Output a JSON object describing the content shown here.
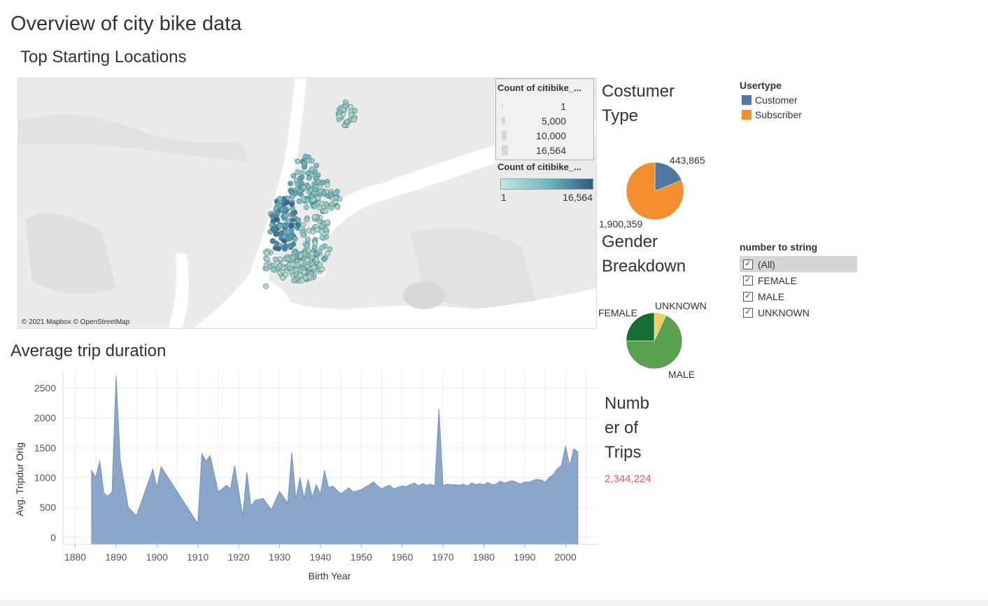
{
  "dashboard": {
    "title": "Overview of city bike data",
    "map_title": "Top Starting Locations",
    "avg_title": "Average trip duration",
    "costumer_line1": "Costumer",
    "costumer_line2": "Type",
    "gender_line1": "Gender",
    "gender_line2": "Breakdown",
    "trips_line1": "Numb",
    "trips_line2": "er of",
    "trips_line3": "Trips",
    "trips_value": "2,344,224",
    "map_attribution": "© 2021 Mapbox © OpenStreetMap"
  },
  "map_legend_size": {
    "title": "Count of citibike_...",
    "items": [
      "1",
      "5,000",
      "10,000",
      "16,564"
    ]
  },
  "map_legend_color": {
    "title": "Count of citibike_...",
    "min": "1",
    "max": "16,564",
    "color_low": "#c2e5dc",
    "color_high": "#2a5b84"
  },
  "usertype_legend": {
    "title": "Usertype",
    "items": [
      {
        "label": "Customer",
        "color": "#4e79a7"
      },
      {
        "label": "Subscriber",
        "color": "#f28e2b"
      }
    ]
  },
  "gender_filter": {
    "title": "number to string",
    "options": [
      {
        "label": "(All)",
        "checked": true,
        "highlighted": true
      },
      {
        "label": "FEMALE",
        "checked": true
      },
      {
        "label": "MALE",
        "checked": true
      },
      {
        "label": "UNKNOWN",
        "checked": true
      }
    ]
  },
  "chart_data": [
    {
      "type": "pie",
      "slices": [
        {
          "label": "Customer",
          "value": 443865,
          "value_label": "443,865",
          "color": "#4e79a7"
        },
        {
          "label": "Subscriber",
          "value": 1900359,
          "value_label": "1,900,359",
          "color": "#f28e2b"
        }
      ]
    },
    {
      "type": "pie",
      "slices": [
        {
          "label": "FEMALE",
          "value": 0.25,
          "color": "#166d33"
        },
        {
          "label": "MALE",
          "value": 0.68,
          "color": "#59a14f"
        },
        {
          "label": "UNKNOWN",
          "value": 0.07,
          "color": "#f1ce63"
        }
      ]
    },
    {
      "type": "area",
      "xlabel": "Birth Year",
      "ylabel": "Avg. Tripdur Orig",
      "xlim": [
        1877,
        2008
      ],
      "ylim": [
        -120,
        2800
      ],
      "xticks": [
        1880,
        1890,
        1900,
        1910,
        1920,
        1930,
        1940,
        1950,
        1960,
        1970,
        1980,
        1990,
        2000
      ],
      "yticks": [
        0,
        500,
        1000,
        1500,
        2000,
        2500
      ],
      "color": "#8aa6c8",
      "line_color": "#7592b9",
      "x": [
        1884,
        1885,
        1886,
        1887,
        1888,
        1889,
        1890,
        1891,
        1893,
        1895,
        1899,
        1900,
        1901,
        1910,
        1911,
        1912,
        1913,
        1915,
        1917,
        1918,
        1919,
        1921,
        1922,
        1923,
        1924,
        1926,
        1928,
        1930,
        1932,
        1933,
        1934,
        1935,
        1936,
        1937,
        1938,
        1939,
        1940,
        1941,
        1942,
        1943,
        1944,
        1945,
        1946,
        1947,
        1948,
        1949,
        1950,
        1951,
        1952,
        1953,
        1954,
        1955,
        1956,
        1957,
        1958,
        1959,
        1960,
        1961,
        1962,
        1963,
        1964,
        1965,
        1966,
        1967,
        1968,
        1969,
        1970,
        1971,
        1972,
        1973,
        1974,
        1975,
        1976,
        1977,
        1978,
        1979,
        1980,
        1981,
        1982,
        1983,
        1984,
        1985,
        1986,
        1987,
        1988,
        1989,
        1990,
        1991,
        1992,
        1993,
        1994,
        1995,
        1996,
        1997,
        1998,
        1999,
        2000,
        2001,
        2002,
        2003
      ],
      "y": [
        1120,
        1000,
        1280,
        740,
        690,
        760,
        2700,
        1290,
        500,
        360,
        1140,
        820,
        1180,
        230,
        1400,
        1270,
        1370,
        760,
        870,
        810,
        1200,
        350,
        1090,
        520,
        620,
        650,
        460,
        770,
        570,
        1420,
        640,
        1000,
        650,
        970,
        670,
        880,
        720,
        1120,
        830,
        860,
        790,
        730,
        780,
        830,
        760,
        780,
        800,
        840,
        880,
        930,
        860,
        810,
        850,
        870,
        810,
        840,
        860,
        850,
        880,
        910,
        860,
        900,
        870,
        890,
        860,
        2150,
        860,
        890,
        880,
        880,
        870,
        890,
        860,
        910,
        880,
        900,
        880,
        920,
        880,
        890,
        940,
        910,
        930,
        950,
        920,
        890,
        930,
        920,
        950,
        970,
        960,
        920,
        1000,
        1050,
        1150,
        1200,
        1530,
        1200,
        1480,
        1430
      ]
    }
  ]
}
